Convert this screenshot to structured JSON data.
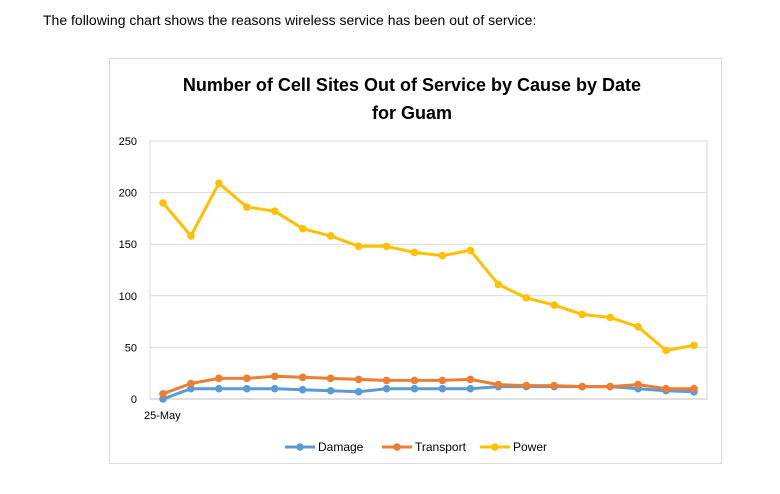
{
  "intro_text": "The following chart shows the reasons wireless service has been out of service:",
  "chart_data": {
    "type": "line",
    "title_line1": "Number of Cell Sites Out of Service by Cause by Date",
    "title_line2": "for Guam",
    "xlabel": "",
    "ylabel": "",
    "x_tick_label": "25-May",
    "ylim": [
      0,
      250
    ],
    "y_ticks": [
      0,
      50,
      100,
      150,
      200,
      250
    ],
    "grid": true,
    "legend_position": "bottom",
    "series": [
      {
        "name": "Damage",
        "color": "#5b9bd5",
        "values": [
          0,
          10,
          10,
          10,
          10,
          9,
          8,
          7,
          10,
          10,
          10,
          10,
          12,
          12,
          12,
          12,
          12,
          10,
          8,
          7
        ]
      },
      {
        "name": "Transport",
        "color": "#ed7d31",
        "values": [
          5,
          15,
          20,
          20,
          22,
          21,
          20,
          19,
          18,
          18,
          18,
          19,
          14,
          13,
          13,
          12,
          12,
          14,
          10,
          10
        ]
      },
      {
        "name": "Power",
        "color": "#ffc000",
        "values": [
          190,
          158,
          209,
          186,
          182,
          165,
          158,
          148,
          148,
          142,
          139,
          144,
          111,
          98,
          91,
          82,
          79,
          70,
          47,
          52
        ]
      }
    ]
  }
}
